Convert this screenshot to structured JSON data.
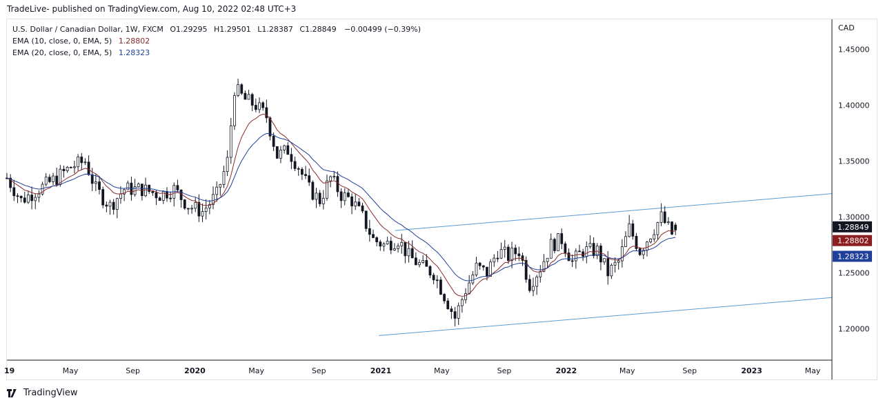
{
  "publisher": "TradeLive- published on TradingView.com, Aug 10, 2022 02:48 UTC+3",
  "footer": {
    "brand": "TradingView",
    "logo_icon": "tradingview-logo-icon"
  },
  "legend": {
    "symbol": "U.S. Dollar / Canadian Dollar, 1W, FXCM",
    "open": "O1.29295",
    "high": "H1.29501",
    "low": "L1.28387",
    "close": "C1.28849",
    "change": "−0.00499 (−0.39%)",
    "ema10_label": "EMA (10, close, 0, EMA, 5)",
    "ema10_value": "1.28802",
    "ema20_label": "EMA (20, close, 0, EMA, 5)",
    "ema20_value": "1.28323"
  },
  "currency": "CAD",
  "colors": {
    "candle": "#131722",
    "ema10": "#8a2a2a",
    "ema20": "#1f3f99",
    "channel": "#5b9bd5",
    "last_price_bg": "#131722",
    "ema10_badge_bg": "#8b1e1e",
    "ema20_badge_bg": "#1f3f99",
    "grid": "#e0e3eb"
  },
  "chart_data": {
    "type": "candlestick",
    "symbol": "USDCAD",
    "timeframe": "1W",
    "y_ticks": [
      1.2,
      1.25,
      1.3,
      1.35,
      1.4,
      1.45
    ],
    "y_tick_labels": [
      "1.20000",
      "1.25000",
      "1.30000",
      "1.35000",
      "1.40000",
      "1.45000"
    ],
    "x_ticks": [
      {
        "label": "19",
        "date": "2019-01-01",
        "bold": true
      },
      {
        "label": "May",
        "date": "2019-05-01",
        "bold": false
      },
      {
        "label": "Sep",
        "date": "2019-09-01",
        "bold": false
      },
      {
        "label": "2020",
        "date": "2020-01-01",
        "bold": true
      },
      {
        "label": "May",
        "date": "2020-05-01",
        "bold": false
      },
      {
        "label": "Sep",
        "date": "2020-09-01",
        "bold": false
      },
      {
        "label": "2021",
        "date": "2021-01-01",
        "bold": true
      },
      {
        "label": "May",
        "date": "2021-05-01",
        "bold": false
      },
      {
        "label": "Sep",
        "date": "2021-09-01",
        "bold": false
      },
      {
        "label": "2022",
        "date": "2022-01-01",
        "bold": true
      },
      {
        "label": "May",
        "date": "2022-05-01",
        "bold": false
      },
      {
        "label": "Sep",
        "date": "2022-09-01",
        "bold": false
      },
      {
        "label": "2023",
        "date": "2023-01-01",
        "bold": true
      },
      {
        "label": "May",
        "date": "2023-05-01",
        "bold": false
      }
    ],
    "x_range": [
      "2018-12-27",
      "2023-06-08"
    ],
    "y_range": [
      1.172,
      1.477
    ],
    "last_close": "1.28849",
    "ema10_last": "1.28802",
    "ema20_last": "1.28323",
    "channel_lines": [
      {
        "name": "upper",
        "start": {
          "date": "2021-01-29",
          "value": 1.288
        },
        "end": {
          "date": "2023-06-08",
          "value": 1.321
        }
      },
      {
        "name": "lower",
        "start": {
          "date": "2020-12-28",
          "value": 1.194
        },
        "end": {
          "date": "2023-06-08",
          "value": 1.228
        }
      }
    ],
    "anchors": [
      [
        "2018-12-27",
        1.335
      ],
      [
        "2019-01-24",
        1.315
      ],
      [
        "2019-02-28",
        1.325
      ],
      [
        "2019-04-04",
        1.335
      ],
      [
        "2019-05-02",
        1.345
      ],
      [
        "2019-05-30",
        1.35
      ],
      [
        "2019-06-20",
        1.325
      ],
      [
        "2019-07-18",
        1.31
      ],
      [
        "2019-08-15",
        1.325
      ],
      [
        "2019-09-19",
        1.325
      ],
      [
        "2019-10-24",
        1.32
      ],
      [
        "2019-11-21",
        1.325
      ],
      [
        "2019-12-19",
        1.31
      ],
      [
        "2020-01-16",
        1.305
      ],
      [
        "2020-02-13",
        1.32
      ],
      [
        "2020-03-05",
        1.35
      ],
      [
        "2020-03-19",
        1.415
      ],
      [
        "2020-04-09",
        1.405
      ],
      [
        "2020-04-30",
        1.4
      ],
      [
        "2020-05-21",
        1.39
      ],
      [
        "2020-06-11",
        1.355
      ],
      [
        "2020-07-02",
        1.36
      ],
      [
        "2020-07-23",
        1.345
      ],
      [
        "2020-08-13",
        1.325
      ],
      [
        "2020-09-03",
        1.315
      ],
      [
        "2020-09-24",
        1.335
      ],
      [
        "2020-10-15",
        1.32
      ],
      [
        "2020-11-05",
        1.315
      ],
      [
        "2020-11-26",
        1.3
      ],
      [
        "2020-12-17",
        1.28
      ],
      [
        "2021-01-07",
        1.275
      ],
      [
        "2021-02-04",
        1.28
      ],
      [
        "2021-02-25",
        1.265
      ],
      [
        "2021-03-25",
        1.255
      ],
      [
        "2021-04-15",
        1.25
      ],
      [
        "2021-05-06",
        1.23
      ],
      [
        "2021-05-27",
        1.21
      ],
      [
        "2021-06-17",
        1.235
      ],
      [
        "2021-07-08",
        1.255
      ],
      [
        "2021-07-29",
        1.25
      ],
      [
        "2021-08-19",
        1.27
      ],
      [
        "2021-09-09",
        1.265
      ],
      [
        "2021-09-30",
        1.27
      ],
      [
        "2021-10-21",
        1.24
      ],
      [
        "2021-11-11",
        1.255
      ],
      [
        "2021-12-02",
        1.275
      ],
      [
        "2021-12-23",
        1.28
      ],
      [
        "2022-01-13",
        1.26
      ],
      [
        "2022-02-03",
        1.27
      ],
      [
        "2022-03-03",
        1.27
      ],
      [
        "2022-03-24",
        1.25
      ],
      [
        "2022-04-14",
        1.26
      ],
      [
        "2022-05-05",
        1.29
      ],
      [
        "2022-05-26",
        1.27
      ],
      [
        "2022-06-16",
        1.285
      ],
      [
        "2022-07-07",
        1.3
      ],
      [
        "2022-07-28",
        1.285
      ],
      [
        "2022-08-08",
        1.288
      ]
    ]
  }
}
